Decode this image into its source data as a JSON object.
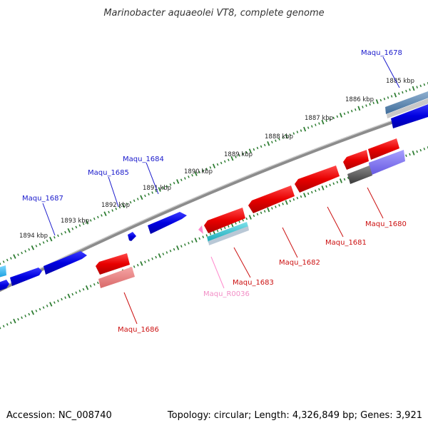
{
  "title": "Marinobacter aquaeolei VT8, complete genome",
  "footer": {
    "accession": "Accession: NC_008740",
    "topology": "Topology: circular; Length: 4,326,849 bp; Genes: 3,921"
  },
  "ticks": [
    "1885 kbp",
    "1886 kbp",
    "1887 kbp",
    "1888 kbp",
    "1889 kbp",
    "1890 kbp",
    "1891 kbp",
    "1892 kbp",
    "1893 kbp",
    "1894 kbp"
  ],
  "labels": {
    "maqu_1678": "Maqu_1678",
    "maqu_1684": "Maqu_1684",
    "maqu_1685": "Maqu_1685",
    "maqu_1687": "Maqu_1687",
    "maqu_1680": "Maqu_1680",
    "maqu_1681": "Maqu_1681",
    "maqu_1682": "Maqu_1682",
    "maqu_1683": "Maqu_1683",
    "maqu_r0036": "Maqu_R0036",
    "maqu_1686": "Maqu_1686"
  },
  "colors": {
    "forward_cds": "#0000e6",
    "reverse_cds": "#e60000",
    "rna": "#ff88cc",
    "backbone": "#808080",
    "tick": "#2e7d32"
  }
}
